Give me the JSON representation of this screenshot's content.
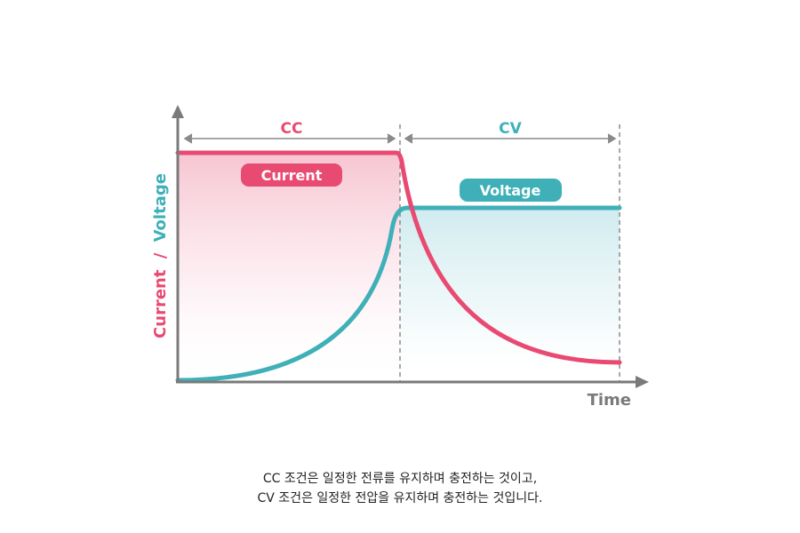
{
  "labels": {
    "cc": "CC",
    "cv": "CV",
    "current_badge": "Current",
    "voltage_badge": "Voltage",
    "x_axis": "Time",
    "y_axis_current": "Current",
    "y_axis_separator": "/",
    "y_axis_voltage": "Voltage"
  },
  "caption": {
    "line1": "CC 조건은 일정한 전류를 유지하며 충전하는 것이고,",
    "line2": "CV 조건은 일정한 전압을 유지하며 충전하는 것입니다."
  },
  "colors": {
    "current": "#e84a72",
    "voltage": "#3fb0b8",
    "axis": "#7a7a7a",
    "divider": "#8a8a8a"
  }
}
